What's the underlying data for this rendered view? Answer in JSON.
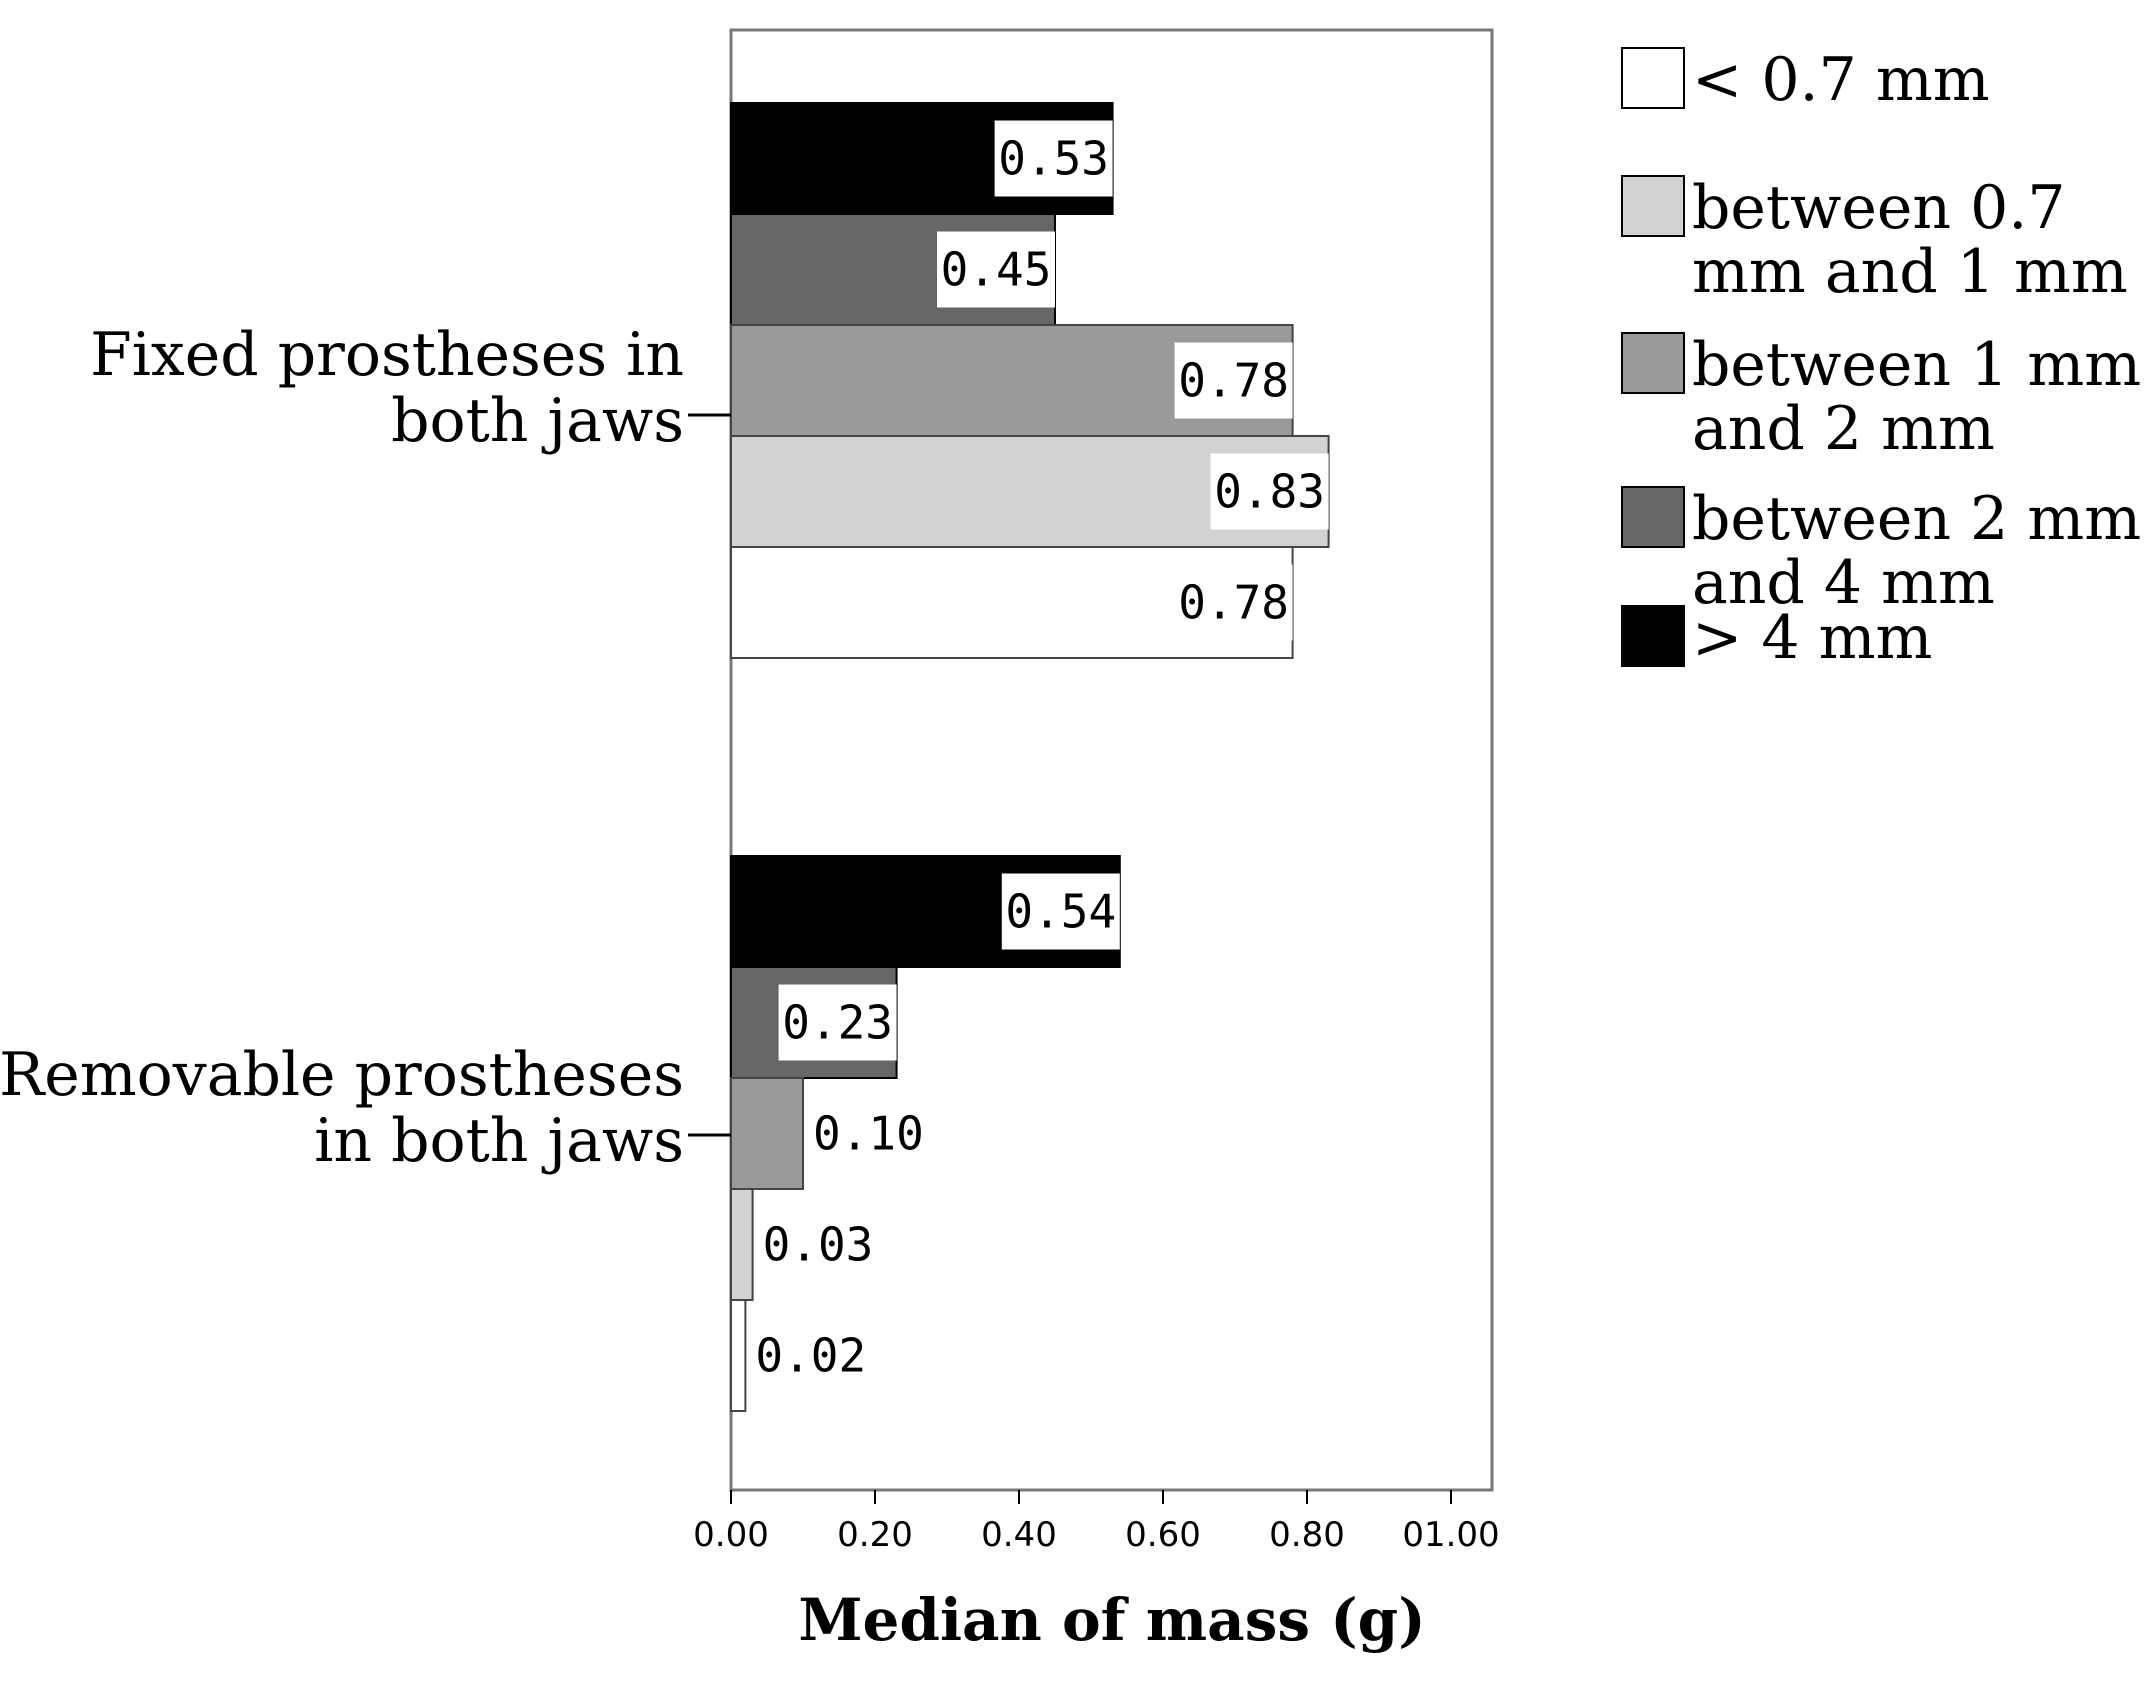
{
  "chart_data": {
    "type": "bar",
    "orientation": "horizontal",
    "xlabel": "Median of mass (g)",
    "ylabel": "",
    "xlim": [
      0,
      1.05
    ],
    "x_ticks": [
      0,
      0.2,
      0.4,
      0.6,
      0.8,
      1.0
    ],
    "x_tick_labels": [
      "0.00",
      "0.20",
      "0.40",
      "0.60",
      "0.80",
      "01.00"
    ],
    "grid": false,
    "legend_position": "top-right",
    "categories": [
      {
        "lines": [
          "Fixed prostheses in",
          "both jaws"
        ]
      },
      {
        "lines": [
          "Removable prostheses",
          "in both jaws"
        ]
      }
    ],
    "series": [
      {
        "name": "> 4 mm",
        "color": "#000000",
        "values": [
          0.53,
          0.54
        ],
        "labels": [
          "0.53",
          "0.54"
        ]
      },
      {
        "name": "between 2 mm and 4 mm",
        "legend_lines": [
          "between 2 mm",
          "and 4 mm"
        ],
        "color": "#666666",
        "values": [
          0.45,
          0.23
        ],
        "labels": [
          "0.45",
          "0.23"
        ]
      },
      {
        "name": "between 1 mm and 2 mm",
        "legend_lines": [
          "between 1 mm",
          "and 2 mm"
        ],
        "color": "#9a9a9a",
        "values": [
          0.78,
          0.1
        ],
        "labels": [
          "0.78",
          "0.10"
        ]
      },
      {
        "name": "between 0.7 mm and 1 mm",
        "legend_lines": [
          "between 0.7",
          "mm and 1 mm"
        ],
        "color": "#d2d2d2",
        "values": [
          0.83,
          0.03
        ],
        "labels": [
          "0.83",
          "0.03"
        ]
      },
      {
        "name": "< 0.7 mm",
        "legend_lines": [
          "< 0.7 mm"
        ],
        "color": "#ffffff",
        "values": [
          0.78,
          0.02
        ],
        "labels": [
          "0.78",
          "0.02"
        ]
      }
    ],
    "legend_order": [
      "< 0.7 mm",
      "between 0.7 mm and 1 mm",
      "between 1 mm and 2 mm",
      "between 2 mm and 4 mm",
      "> 4 mm"
    ],
    "legend_lines_override": {
      "> 4 mm": [
        "> 4 mm"
      ]
    }
  }
}
